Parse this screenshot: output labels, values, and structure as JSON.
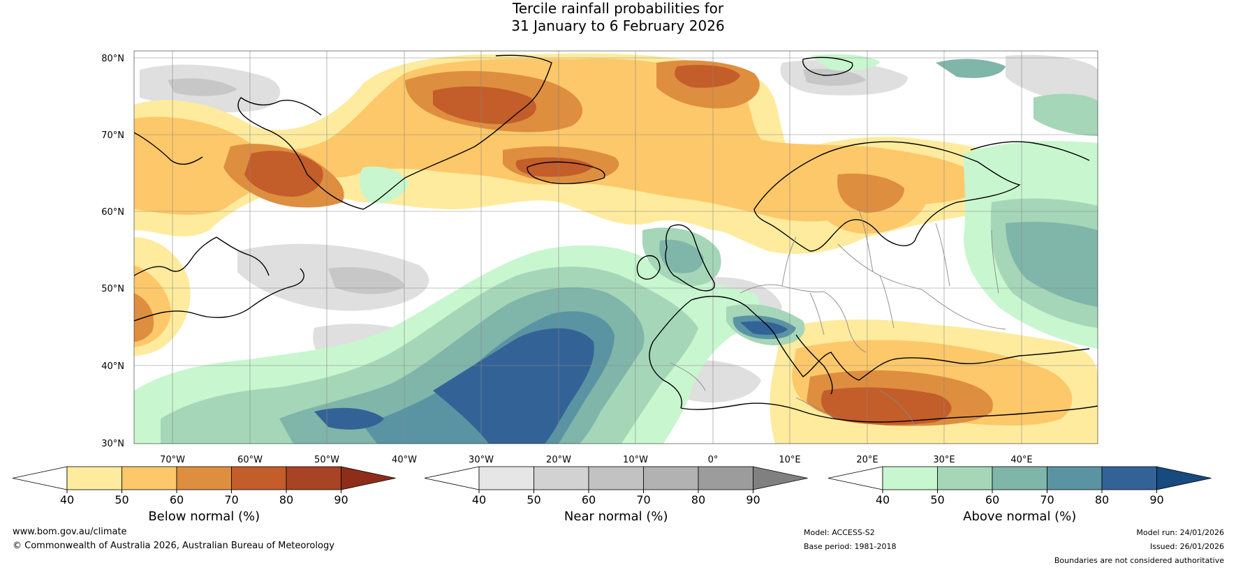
{
  "title": {
    "line1": "Tercile rainfall probabilities for",
    "line2": "31 January to 6 February 2026"
  },
  "map": {
    "lat_labels": [
      "80°N",
      "70°N",
      "60°N",
      "50°N",
      "40°N",
      "30°N"
    ],
    "lon_labels": [
      "70°W",
      "60°W",
      "50°W",
      "40°W",
      "30°W",
      "20°W",
      "10°W",
      "0°",
      "10°E",
      "20°E",
      "30°E",
      "40°E"
    ],
    "colors": {
      "ocean_white": "#ffffff",
      "land_boundary": "#000000",
      "country_boundary": "#888888",
      "grid": "#888888"
    }
  },
  "colorbars": [
    {
      "label": "Below normal (%)",
      "ticks": [
        "40",
        "50",
        "60",
        "70",
        "80",
        "90"
      ],
      "colors": [
        "#ffffff",
        "#feeb9e",
        "#fdc86a",
        "#de8e3f",
        "#c35d2a",
        "#a84325",
        "#8e2d1a"
      ]
    },
    {
      "label": "Near normal (%)",
      "ticks": [
        "40",
        "50",
        "60",
        "70",
        "80",
        "90"
      ],
      "colors": [
        "#ffffff",
        "#e6e6e6",
        "#d2d2d2",
        "#c2c2c2",
        "#b2b2b2",
        "#9c9c9c",
        "#808080"
      ]
    },
    {
      "label": "Above normal (%)",
      "ticks": [
        "40",
        "50",
        "60",
        "70",
        "80",
        "90"
      ],
      "colors": [
        "#ffffff",
        "#c8f6cf",
        "#a5d6b8",
        "#80b5aa",
        "#5a94a3",
        "#336396",
        "#174a7e"
      ]
    }
  ],
  "footer": {
    "website": "www.bom.gov.au/climate",
    "copyright": "© Commonwealth of Australia 2026, Australian Bureau of Meteorology",
    "model": "Model: ACCESS-S2",
    "base_period": "Base period: 1981-2018",
    "model_run": "Model run: 24/01/2026",
    "issued": "Issued: 26/01/2026",
    "disclaimer": "Boundaries are not considered authoritative"
  }
}
